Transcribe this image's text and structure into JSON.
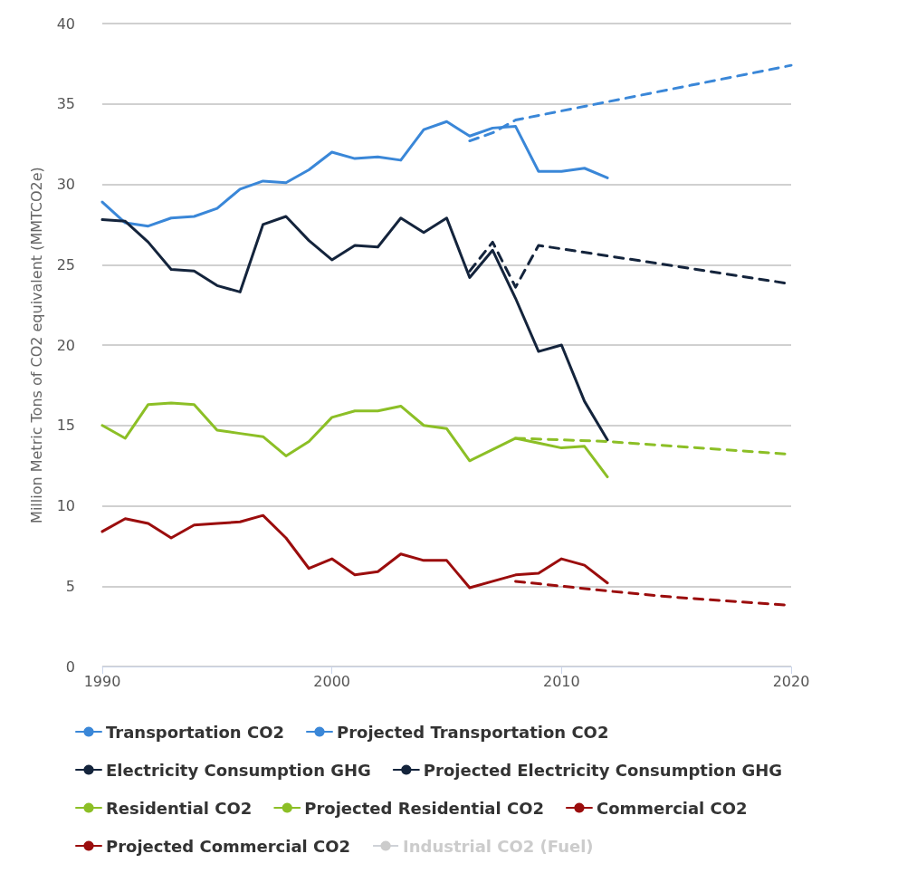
{
  "chart_data": {
    "type": "line",
    "ylabel": "Million Metric Tons of CO2 equivalent (MMTCO2e)",
    "x": [
      1990,
      1991,
      1992,
      1993,
      1994,
      1995,
      1996,
      1997,
      1998,
      1999,
      2000,
      2001,
      2002,
      2003,
      2004,
      2005,
      2006,
      2007,
      2008,
      2009,
      2010,
      2011,
      2012
    ],
    "xlim": [
      1990,
      2020
    ],
    "xticks": [
      1990,
      2000,
      2010,
      2020
    ],
    "ylim": [
      0,
      40
    ],
    "yticks": [
      0,
      5,
      10,
      15,
      20,
      25,
      30,
      35,
      40
    ],
    "grid": "y",
    "legend": "bottom",
    "marker": "none",
    "line_style": "solid",
    "series": [
      {
        "name": "Transportation CO2",
        "color": "#3a87d8",
        "values": [
          28.9,
          27.6,
          27.4,
          27.9,
          28.0,
          28.5,
          29.7,
          30.2,
          30.1,
          30.9,
          32.0,
          31.6,
          31.7,
          31.5,
          33.4,
          33.9,
          33.0,
          33.5,
          33.6,
          30.8,
          30.8,
          31.0,
          30.4
        ]
      },
      {
        "name": "Projected Transportation CO2",
        "color": "#3a87d8",
        "line_style": "dashed",
        "x": [
          2006,
          2007,
          2008,
          2020
        ],
        "values": [
          32.7,
          33.2,
          34.0,
          37.4
        ]
      },
      {
        "name": "Electricity Consumption GHG",
        "color": "#14243c",
        "values": [
          27.8,
          27.7,
          26.4,
          24.7,
          24.6,
          23.7,
          23.3,
          27.5,
          28.0,
          26.5,
          25.3,
          26.2,
          26.1,
          27.9,
          27.0,
          27.9,
          24.2,
          25.9,
          22.9,
          19.6,
          20.0,
          16.5,
          14.1
        ]
      },
      {
        "name": "Projected Electricity Consumption GHG",
        "color": "#14243c",
        "line_style": "dashed",
        "x": [
          2006,
          2007,
          2008,
          2009,
          2015,
          2020
        ],
        "values": [
          24.6,
          26.4,
          23.6,
          26.2,
          24.9,
          23.8
        ]
      },
      {
        "name": "Residential CO2",
        "color": "#8cbf26",
        "values": [
          15.0,
          14.2,
          16.3,
          16.4,
          16.3,
          14.7,
          14.5,
          14.3,
          13.1,
          14.0,
          15.5,
          15.9,
          15.9,
          16.2,
          15.0,
          14.8,
          12.8,
          13.5,
          14.2,
          13.9,
          13.6,
          13.7,
          11.8
        ]
      },
      {
        "name": "Projected Residential CO2",
        "color": "#8cbf26",
        "line_style": "dashed",
        "x": [
          2008,
          2012,
          2020
        ],
        "values": [
          14.2,
          14.0,
          13.2
        ]
      },
      {
        "name": "Commercial CO2",
        "color": "#9b0d0d",
        "values": [
          8.4,
          9.2,
          8.9,
          8.0,
          8.8,
          8.9,
          9.0,
          9.4,
          8.0,
          6.1,
          6.7,
          5.7,
          5.9,
          7.0,
          6.6,
          6.6,
          4.9,
          5.3,
          5.7,
          5.8,
          6.7,
          6.3,
          5.2
        ]
      },
      {
        "name": "Projected Commercial CO2",
        "color": "#9b0d0d",
        "line_style": "dashed",
        "x": [
          2008,
          2012,
          2015,
          2020
        ],
        "values": [
          5.3,
          4.7,
          4.3,
          3.8
        ]
      },
      {
        "name": "Industrial CO2 (Fuel)",
        "color": "#cccccc",
        "values": [
          null,
          null,
          null,
          null,
          null,
          null,
          null,
          null,
          null,
          null,
          null,
          null,
          null,
          null,
          null,
          null,
          null,
          null,
          null,
          null,
          null,
          null,
          null
        ]
      }
    ]
  }
}
